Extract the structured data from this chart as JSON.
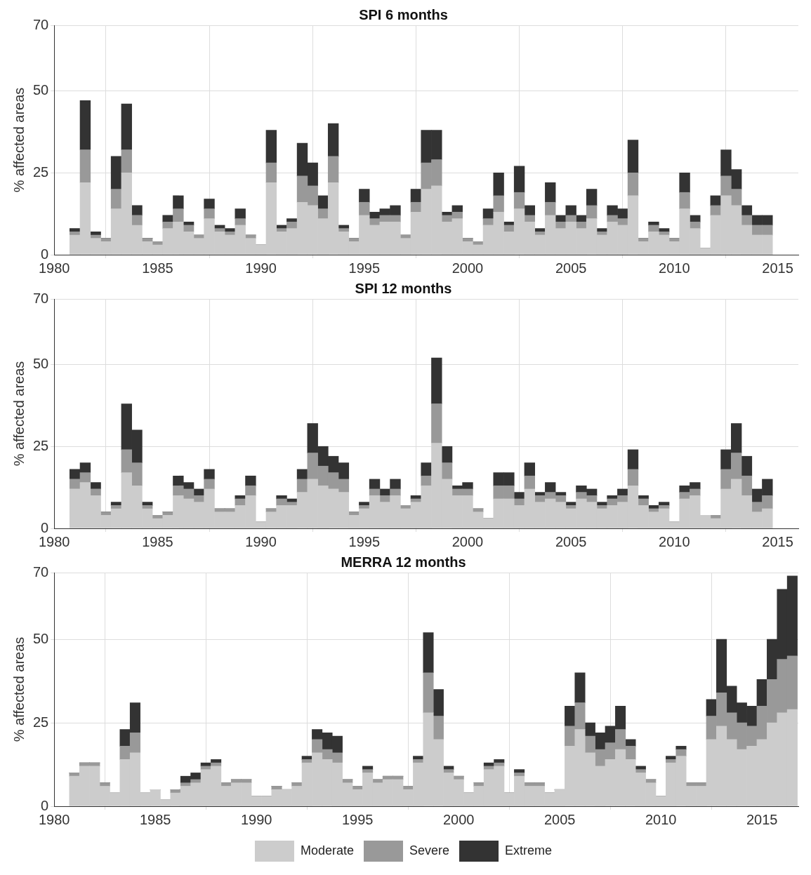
{
  "chart_data": [
    {
      "type": "bar",
      "title": "SPI 6 months",
      "ylabel": "% affected areas",
      "stacked": true,
      "grid": true,
      "legend": false,
      "xlim": [
        1980,
        2016
      ],
      "xticks": [
        1980,
        1985,
        1990,
        1995,
        2000,
        2005,
        2010,
        2015
      ],
      "ylim": [
        0,
        70
      ],
      "yticks": [
        0,
        25,
        50,
        70
      ],
      "x": [
        1981,
        1981.5,
        1982,
        1982.5,
        1983,
        1983.5,
        1984,
        1984.5,
        1985,
        1985.5,
        1986,
        1986.5,
        1987,
        1987.5,
        1988,
        1988.5,
        1989,
        1989.5,
        1990,
        1990.5,
        1991,
        1991.5,
        1992,
        1992.5,
        1993,
        1993.5,
        1994,
        1994.5,
        1995,
        1995.5,
        1996,
        1996.5,
        1997,
        1997.5,
        1998,
        1998.5,
        1999,
        1999.5,
        2000,
        2000.5,
        2001,
        2001.5,
        2002,
        2002.5,
        2003,
        2003.5,
        2004,
        2004.5,
        2005,
        2005.5,
        2006,
        2006.5,
        2007,
        2007.5,
        2008,
        2008.5,
        2009,
        2009.5,
        2010,
        2010.5,
        2011,
        2011.5,
        2012,
        2012.5,
        2013,
        2013.5,
        2014,
        2014.5
      ],
      "series": [
        {
          "color": "#cccccc",
          "values": [
            6,
            22,
            5,
            4,
            14,
            25,
            9,
            4,
            3,
            8,
            10,
            7,
            5,
            11,
            7,
            6,
            9,
            5,
            3,
            22,
            7,
            8,
            16,
            15,
            11,
            22,
            7,
            4,
            12,
            9,
            10,
            10,
            5,
            13,
            20,
            21,
            10,
            11,
            4,
            3,
            9,
            13,
            7,
            14,
            10,
            6,
            12,
            8,
            10,
            8,
            11,
            6,
            10,
            9,
            18,
            4,
            7,
            6,
            4,
            14,
            8,
            2,
            12,
            18,
            15,
            9,
            6,
            6
          ]
        },
        {
          "color": "#999999",
          "values": [
            1,
            10,
            1,
            1,
            6,
            7,
            3,
            1,
            1,
            2,
            4,
            2,
            1,
            3,
            1,
            1,
            2,
            1,
            0,
            6,
            1,
            2,
            8,
            6,
            3,
            8,
            1,
            1,
            4,
            2,
            2,
            2,
            1,
            3,
            8,
            8,
            2,
            2,
            1,
            1,
            2,
            5,
            2,
            5,
            2,
            1,
            4,
            2,
            2,
            2,
            4,
            1,
            2,
            2,
            7,
            1,
            2,
            1,
            1,
            5,
            2,
            0,
            3,
            6,
            5,
            3,
            3,
            3
          ]
        },
        {
          "color": "#333333",
          "values": [
            1,
            15,
            1,
            0,
            10,
            14,
            3,
            0,
            0,
            2,
            4,
            1,
            0,
            3,
            1,
            1,
            3,
            0,
            0,
            10,
            1,
            1,
            10,
            7,
            4,
            10,
            1,
            0,
            4,
            2,
            2,
            3,
            0,
            4,
            10,
            9,
            1,
            2,
            0,
            0,
            3,
            7,
            1,
            8,
            3,
            1,
            6,
            2,
            3,
            2,
            5,
            1,
            3,
            3,
            10,
            0,
            1,
            1,
            0,
            6,
            2,
            0,
            3,
            8,
            6,
            3,
            3,
            3
          ]
        }
      ]
    },
    {
      "type": "bar",
      "title": "SPI 12 months",
      "ylabel": "% affected areas",
      "stacked": true,
      "grid": true,
      "legend": false,
      "xlim": [
        1980,
        2016
      ],
      "xticks": [
        1980,
        1985,
        1990,
        1995,
        2000,
        2005,
        2010,
        2015
      ],
      "ylim": [
        0,
        70
      ],
      "yticks": [
        0,
        25,
        50,
        70
      ],
      "x": [
        1981,
        1981.5,
        1982,
        1982.5,
        1983,
        1983.5,
        1984,
        1984.5,
        1985,
        1985.5,
        1986,
        1986.5,
        1987,
        1987.5,
        1988,
        1988.5,
        1989,
        1989.5,
        1990,
        1990.5,
        1991,
        1991.5,
        1992,
        1992.5,
        1993,
        1993.5,
        1994,
        1994.5,
        1995,
        1995.5,
        1996,
        1996.5,
        1997,
        1997.5,
        1998,
        1998.5,
        1999,
        1999.5,
        2000,
        2000.5,
        2001,
        2001.5,
        2002,
        2002.5,
        2003,
        2003.5,
        2004,
        2004.5,
        2005,
        2005.5,
        2006,
        2006.5,
        2007,
        2007.5,
        2008,
        2008.5,
        2009,
        2009.5,
        2010,
        2010.5,
        2011,
        2011.5,
        2012,
        2012.5,
        2013,
        2013.5,
        2014,
        2014.5
      ],
      "series": [
        {
          "color": "#cccccc",
          "values": [
            12,
            14,
            10,
            4,
            6,
            17,
            13,
            6,
            3,
            4,
            10,
            9,
            8,
            12,
            5,
            5,
            7,
            10,
            2,
            5,
            7,
            7,
            11,
            15,
            13,
            12,
            11,
            4,
            6,
            10,
            8,
            10,
            6,
            8,
            13,
            26,
            15,
            10,
            10,
            5,
            3,
            9,
            9,
            7,
            12,
            8,
            9,
            8,
            6,
            9,
            8,
            6,
            7,
            8,
            13,
            7,
            5,
            6,
            2,
            9,
            10,
            4,
            3,
            12,
            15,
            10,
            5,
            6
          ]
        },
        {
          "color": "#999999",
          "values": [
            3,
            3,
            2,
            1,
            1,
            7,
            7,
            1,
            1,
            1,
            3,
            3,
            2,
            3,
            1,
            1,
            2,
            3,
            0,
            1,
            2,
            1,
            4,
            8,
            6,
            5,
            4,
            1,
            1,
            2,
            2,
            2,
            1,
            1,
            3,
            12,
            5,
            2,
            2,
            1,
            0,
            4,
            4,
            2,
            4,
            2,
            2,
            2,
            1,
            2,
            2,
            1,
            2,
            2,
            5,
            2,
            1,
            1,
            0,
            2,
            2,
            0,
            1,
            6,
            8,
            6,
            3,
            4
          ]
        },
        {
          "color": "#333333",
          "values": [
            3,
            3,
            2,
            0,
            1,
            14,
            10,
            1,
            0,
            0,
            3,
            2,
            2,
            3,
            0,
            0,
            1,
            3,
            0,
            0,
            1,
            1,
            3,
            9,
            6,
            5,
            5,
            0,
            1,
            3,
            2,
            3,
            0,
            1,
            4,
            14,
            5,
            1,
            2,
            0,
            0,
            4,
            4,
            2,
            4,
            1,
            3,
            1,
            1,
            2,
            2,
            1,
            1,
            2,
            6,
            1,
            1,
            1,
            0,
            2,
            2,
            0,
            0,
            6,
            9,
            6,
            4,
            5
          ]
        }
      ]
    },
    {
      "type": "bar",
      "title": "MERRA 12 months",
      "ylabel": "% affected areas",
      "stacked": true,
      "grid": true,
      "legend": "bottom",
      "xlim": [
        1980,
        2016.8
      ],
      "xticks": [
        1980,
        1985,
        1990,
        1995,
        2000,
        2005,
        2010,
        2015
      ],
      "ylim": [
        0,
        70
      ],
      "yticks": [
        0,
        25,
        50,
        70
      ],
      "x": [
        1981,
        1981.5,
        1982,
        1982.5,
        1983,
        1983.5,
        1984,
        1984.5,
        1985,
        1985.5,
        1986,
        1986.5,
        1987,
        1987.5,
        1988,
        1988.5,
        1989,
        1989.5,
        1990,
        1990.5,
        1991,
        1991.5,
        1992,
        1992.5,
        1993,
        1993.5,
        1994,
        1994.5,
        1995,
        1995.5,
        1996,
        1996.5,
        1997,
        1997.5,
        1998,
        1998.5,
        1999,
        1999.5,
        2000,
        2000.5,
        2001,
        2001.5,
        2002,
        2002.5,
        2003,
        2003.5,
        2004,
        2004.5,
        2005,
        2005.5,
        2006,
        2006.5,
        2007,
        2007.5,
        2008,
        2008.5,
        2009,
        2009.5,
        2010,
        2010.5,
        2011,
        2011.5,
        2012,
        2012.5,
        2013,
        2013.5,
        2014,
        2014.5,
        2015,
        2015.5,
        2016,
        2016.5
      ],
      "series": [
        {
          "name": "Moderate",
          "color": "#cccccc",
          "values": [
            9,
            12,
            12,
            6,
            4,
            14,
            16,
            4,
            5,
            2,
            4,
            6,
            7,
            11,
            12,
            6,
            7,
            7,
            3,
            3,
            5,
            5,
            6,
            13,
            16,
            14,
            13,
            7,
            5,
            10,
            7,
            8,
            8,
            5,
            13,
            28,
            20,
            10,
            8,
            4,
            6,
            11,
            12,
            4,
            9,
            6,
            6,
            4,
            5,
            18,
            23,
            16,
            12,
            14,
            17,
            14,
            10,
            7,
            3,
            13,
            15,
            6,
            6,
            20,
            24,
            20,
            17,
            18,
            20,
            25,
            28,
            29
          ]
        },
        {
          "name": "Severe",
          "color": "#999999",
          "values": [
            1,
            1,
            1,
            1,
            0,
            4,
            6,
            0,
            0,
            0,
            1,
            1,
            1,
            1,
            1,
            1,
            1,
            1,
            0,
            0,
            1,
            0,
            1,
            1,
            4,
            3,
            3,
            1,
            1,
            1,
            1,
            1,
            1,
            1,
            1,
            12,
            7,
            1,
            1,
            0,
            1,
            1,
            1,
            0,
            1,
            1,
            1,
            0,
            0,
            6,
            8,
            5,
            5,
            5,
            6,
            4,
            1,
            1,
            0,
            1,
            2,
            1,
            1,
            7,
            10,
            8,
            8,
            6,
            10,
            13,
            16,
            16
          ]
        },
        {
          "name": "Extreme",
          "color": "#333333",
          "values": [
            0,
            0,
            0,
            0,
            0,
            5,
            9,
            0,
            0,
            0,
            0,
            2,
            2,
            1,
            1,
            0,
            0,
            0,
            0,
            0,
            0,
            0,
            0,
            1,
            3,
            5,
            5,
            0,
            0,
            1,
            0,
            0,
            0,
            0,
            1,
            12,
            8,
            1,
            0,
            0,
            0,
            1,
            1,
            0,
            1,
            0,
            0,
            0,
            0,
            6,
            9,
            4,
            5,
            5,
            7,
            2,
            1,
            0,
            0,
            1,
            1,
            0,
            0,
            5,
            16,
            8,
            6,
            6,
            8,
            12,
            21,
            24
          ]
        }
      ]
    }
  ]
}
